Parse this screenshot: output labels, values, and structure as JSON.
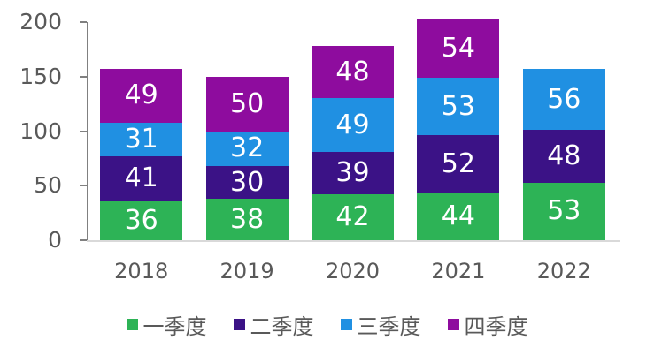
{
  "chart_data": {
    "type": "bar",
    "stacked": true,
    "title": "",
    "xlabel": "",
    "ylabel": "",
    "categories": [
      "2018",
      "2019",
      "2020",
      "2021",
      "2022"
    ],
    "series": [
      {
        "name": "一季度",
        "color": "#2db356",
        "values": [
          36,
          38,
          42,
          44,
          53
        ]
      },
      {
        "name": "二季度",
        "color": "#3b1286",
        "values": [
          41,
          30,
          39,
          52,
          48
        ]
      },
      {
        "name": "三季度",
        "color": "#2090e2",
        "values": [
          31,
          32,
          49,
          53,
          56
        ]
      },
      {
        "name": "四季度",
        "color": "#8e0c9e",
        "values": [
          49,
          50,
          48,
          54,
          0
        ]
      }
    ],
    "ylim": [
      0,
      200
    ],
    "yticks": [
      0,
      50,
      100,
      150,
      200
    ],
    "grid": false,
    "legend_position": "bottom",
    "data_labels": true,
    "data_label_color": "#ffffff"
  },
  "axis_style": {
    "tick_text_color": "#595959",
    "axis_line_color": "#808080",
    "baseline_color": "#d9d9d9"
  }
}
